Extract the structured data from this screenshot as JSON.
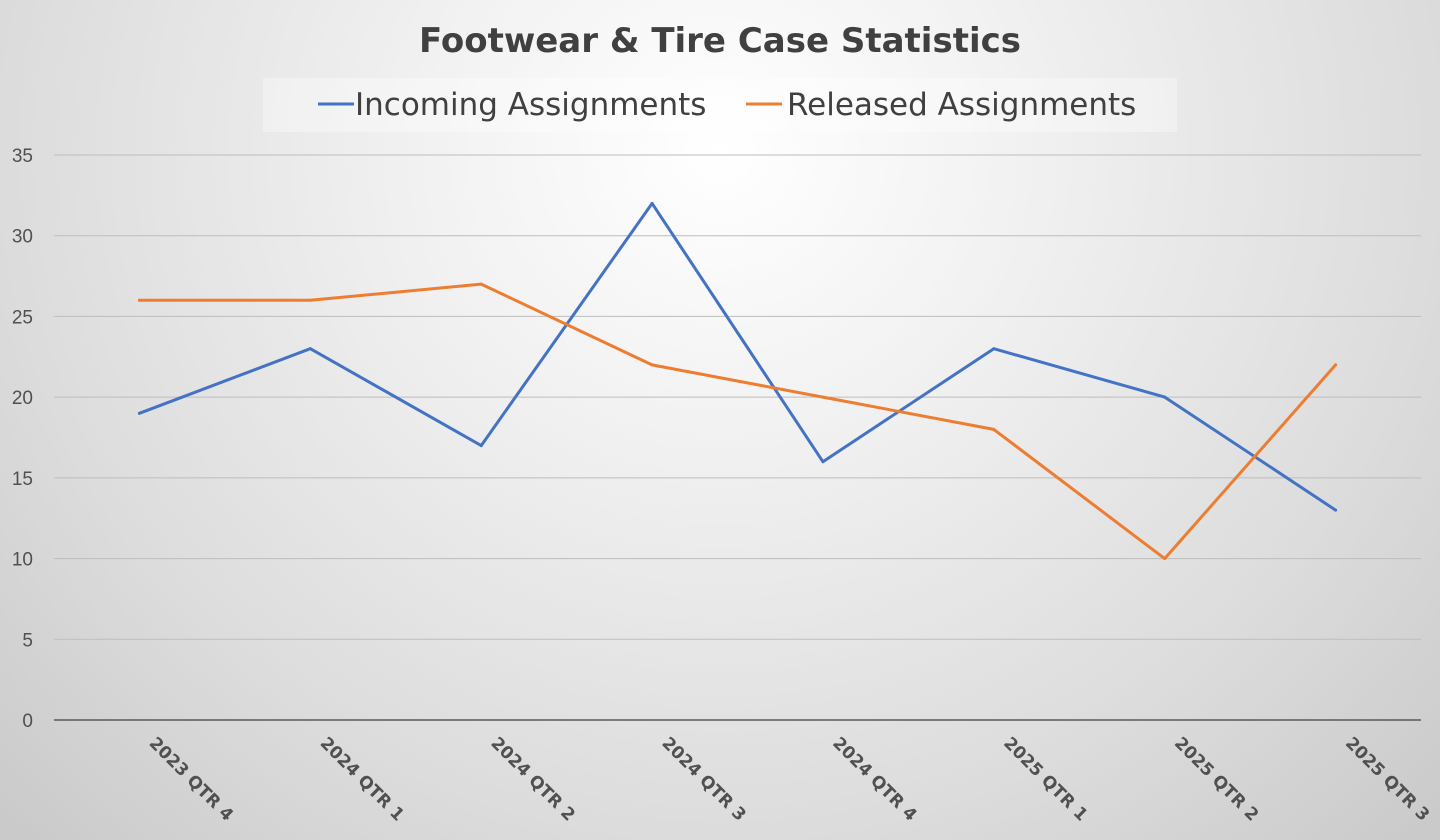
{
  "chart_data": {
    "type": "line",
    "title": "Footwear & Tire Case Statistics",
    "categories": [
      "2023 QTR 4",
      "2024 QTR 1",
      "2024 QTR 2",
      "2024 QTR 3",
      "2024 QTR 4",
      "2025 QTR 1",
      "2025 QTR 2",
      "2025 QTR 3"
    ],
    "series": [
      {
        "name": "Incoming Assignments",
        "color": "#4472C4",
        "values": [
          19,
          23,
          17,
          32,
          16,
          23,
          20,
          13
        ]
      },
      {
        "name": "Released Assignments",
        "color": "#ED7D31",
        "values": [
          26,
          26,
          27,
          22,
          20,
          18,
          10,
          22
        ]
      }
    ],
    "ylim": [
      0,
      35
    ],
    "yticks": [
      0,
      5,
      10,
      15,
      20,
      25,
      30,
      35
    ],
    "xlabel": "",
    "ylabel": "",
    "grid": true,
    "legend_position": "top"
  }
}
